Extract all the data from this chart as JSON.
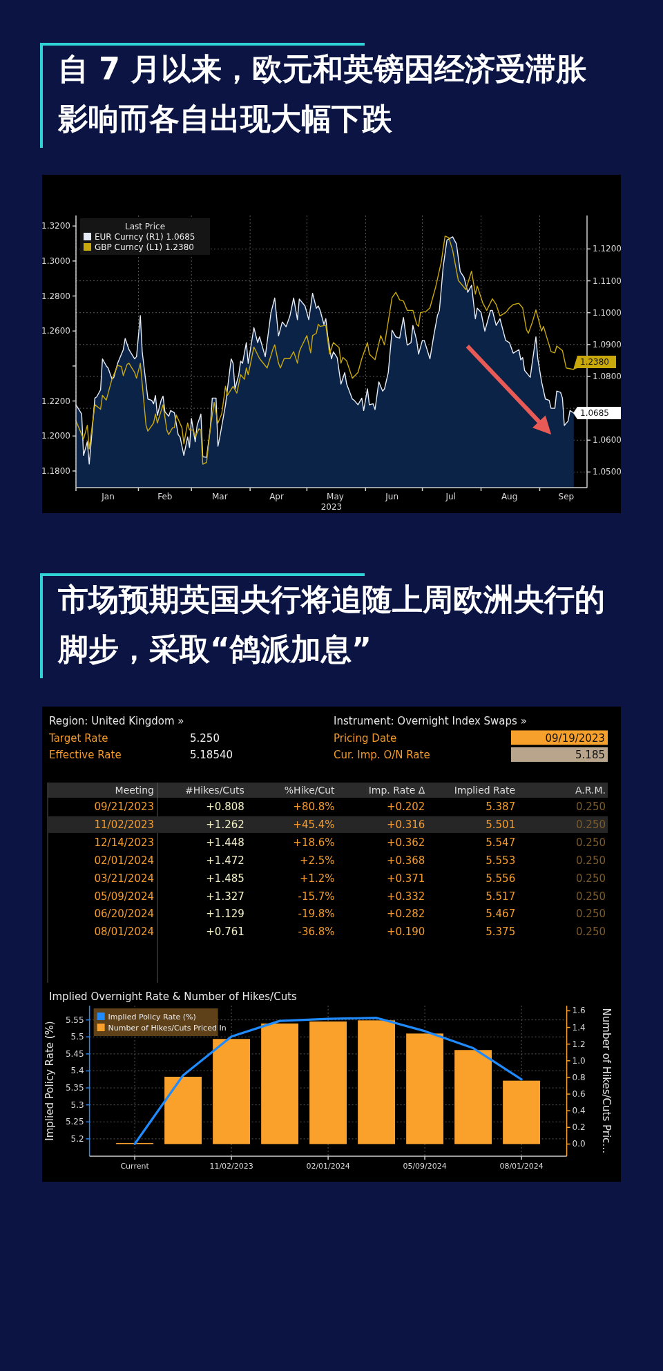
{
  "chart_data": [
    {
      "type": "line",
      "title": "自 7 月以来，欧元和英镑因经济受滞胀影响而各自出现大幅下跌",
      "legend_title": "Last Price",
      "xlabel": "2023",
      "xlim": [
        "2022-12-30",
        "2023-09-26"
      ],
      "ylim": [
        1.1705,
        1.326
      ],
      "y2lim": [
        1.0451,
        1.1305
      ],
      "xticks": [
        {
          "value": "2022-12-30",
          "label": null
        },
        {
          "value": "2023-01-16",
          "label": "Jan"
        },
        {
          "value": "2023-02-01",
          "label": null
        },
        {
          "value": "2023-02-15",
          "label": "Feb"
        },
        {
          "value": "2023-03-01",
          "label": null
        },
        {
          "value": "2023-03-16",
          "label": "Mar"
        },
        {
          "value": "2023-04-01",
          "label": null
        },
        {
          "value": "2023-04-15",
          "label": "Apr"
        },
        {
          "value": "2023-05-01",
          "label": null
        },
        {
          "value": "2023-05-16",
          "label": "May"
        },
        {
          "value": "2023-06-01",
          "label": null
        },
        {
          "value": "2023-06-15",
          "label": "Jun"
        },
        {
          "value": "2023-07-01",
          "label": null
        },
        {
          "value": "2023-07-16",
          "label": "Jul"
        },
        {
          "value": "2023-08-01",
          "label": null
        },
        {
          "value": "2023-08-16",
          "label": "Aug"
        },
        {
          "value": "2023-09-01",
          "label": null
        },
        {
          "value": "2023-09-15",
          "label": "Sep"
        }
      ],
      "yticks": [
        {
          "value": 1.18,
          "label": "1.1800"
        },
        {
          "value": 1.2,
          "label": "1.2000"
        },
        {
          "value": 1.22,
          "label": "1.2200"
        },
        {
          "value": 1.24,
          "label": null
        },
        {
          "value": 1.26,
          "label": "1.2600"
        },
        {
          "value": 1.28,
          "label": "1.2800"
        },
        {
          "value": 1.3,
          "label": "1.3000"
        },
        {
          "value": 1.32,
          "label": "1.3200"
        }
      ],
      "y2ticks": [
        {
          "value": 1.05,
          "label": "1.0500"
        },
        {
          "value": 1.06,
          "label": "1.0600"
        },
        {
          "value": 1.07,
          "label": null
        },
        {
          "value": 1.08,
          "label": "1.0800"
        },
        {
          "value": 1.09,
          "label": "1.0900"
        },
        {
          "value": 1.1,
          "label": "1.1000"
        },
        {
          "value": 1.11,
          "label": "1.1100"
        },
        {
          "value": 1.12,
          "label": "1.1200"
        }
      ],
      "grid": true,
      "legend": "top left",
      "series": [
        {
          "name": "EUR Curncy (R1) 1.0685",
          "type": "area",
          "axis": "y2",
          "color": "#e6ecf5",
          "x": [
            "2022-12-30",
            "2023-01-02",
            "2023-01-03",
            "2023-01-05",
            "2023-01-06",
            "2023-01-09",
            "2023-01-10",
            "2023-01-12",
            "2023-01-13",
            "2023-01-15",
            "2023-01-16",
            "2023-01-18",
            "2023-01-19",
            "2023-01-21",
            "2023-01-24",
            "2023-01-25",
            "2023-01-27",
            "2023-01-30",
            "2023-01-31",
            "2023-02-02",
            "2023-02-03",
            "2023-02-06",
            "2023-02-08",
            "2023-02-09",
            "2023-02-10",
            "2023-02-11",
            "2023-02-13",
            "2023-02-14",
            "2023-02-15",
            "2023-02-17",
            "2023-02-18",
            "2023-02-20",
            "2023-02-22",
            "2023-02-23",
            "2023-02-25",
            "2023-02-27",
            "2023-02-28",
            "2023-03-01",
            "2023-03-03",
            "2023-03-04",
            "2023-03-06",
            "2023-03-07",
            "2023-03-09",
            "2023-03-11",
            "2023-03-12",
            "2023-03-14",
            "2023-03-15",
            "2023-03-16",
            "2023-03-19",
            "2023-03-22",
            "2023-03-23",
            "2023-03-24",
            "2023-03-26",
            "2023-03-27",
            "2023-03-28",
            "2023-03-30",
            "2023-03-31",
            "2023-04-03",
            "2023-04-05",
            "2023-04-06",
            "2023-04-09",
            "2023-04-12",
            "2023-04-14",
            "2023-04-16",
            "2023-04-18",
            "2023-04-20",
            "2023-04-22",
            "2023-04-24",
            "2023-04-26",
            "2023-04-27",
            "2023-04-30",
            "2023-05-02",
            "2023-05-04",
            "2023-05-06",
            "2023-05-07",
            "2023-05-08",
            "2023-05-10",
            "2023-05-11",
            "2023-05-12",
            "2023-05-14",
            "2023-05-15",
            "2023-05-17",
            "2023-05-19",
            "2023-05-21",
            "2023-05-22",
            "2023-05-25",
            "2023-05-26",
            "2023-05-28",
            "2023-05-30",
            "2023-05-31",
            "2023-06-02",
            "2023-06-03",
            "2023-06-05",
            "2023-06-06",
            "2023-06-08",
            "2023-06-10",
            "2023-06-11",
            "2023-06-13",
            "2023-06-15",
            "2023-06-17",
            "2023-06-19",
            "2023-06-21",
            "2023-06-23",
            "2023-06-25",
            "2023-06-26",
            "2023-06-28",
            "2023-06-29",
            "2023-07-01",
            "2023-07-02",
            "2023-07-05",
            "2023-07-07",
            "2023-07-09",
            "2023-07-10",
            "2023-07-12",
            "2023-07-14",
            "2023-07-17",
            "2023-07-19",
            "2023-07-21",
            "2023-07-23",
            "2023-07-25",
            "2023-07-27",
            "2023-07-29",
            "2023-07-30",
            "2023-08-01",
            "2023-08-03",
            "2023-08-06",
            "2023-08-07",
            "2023-08-09",
            "2023-08-11",
            "2023-08-14",
            "2023-08-16",
            "2023-08-18",
            "2023-08-21",
            "2023-08-22",
            "2023-08-23",
            "2023-08-24",
            "2023-08-27",
            "2023-08-28",
            "2023-08-30",
            "2023-08-31",
            "2023-09-02",
            "2023-09-04",
            "2023-09-06",
            "2023-09-07",
            "2023-09-09",
            "2023-09-10",
            "2023-09-12",
            "2023-09-13",
            "2023-09-14",
            "2023-09-16",
            "2023-09-17",
            "2023-09-19"
          ],
          "values": [
            1.0711,
            1.0682,
            1.0552,
            1.0595,
            1.0525,
            1.0732,
            1.0736,
            1.0758,
            1.0855,
            1.0833,
            1.0826,
            1.0792,
            1.0797,
            1.0841,
            1.0884,
            1.0919,
            1.0884,
            1.0855,
            1.0862,
            1.0991,
            1.0877,
            1.0729,
            1.0725,
            1.0714,
            1.074,
            1.0678,
            1.0725,
            1.0738,
            1.0689,
            1.0675,
            1.0693,
            1.0686,
            1.0617,
            1.061,
            1.0552,
            1.061,
            1.0577,
            1.0668,
            1.0595,
            1.0646,
            1.0682,
            1.0548,
            1.0546,
            1.0639,
            1.0732,
            1.0732,
            1.0581,
            1.061,
            1.0711,
            1.0855,
            1.0841,
            1.0761,
            1.0805,
            1.0848,
            1.0841,
            1.0906,
            1.0841,
            1.0953,
            1.0906,
            1.0924,
            1.0862,
            1.0999,
            1.1046,
            1.0927,
            1.0971,
            1.0956,
            1.0989,
            1.1046,
            1.0978,
            1.1043,
            1.1021,
            1.0978,
            1.1061,
            1.1014,
            1.1021,
            1.1007,
            1.0963,
            1.0981,
            1.0927,
            1.0855,
            1.0877,
            1.0859,
            1.0776,
            1.0812,
            1.0776,
            1.0729,
            1.0725,
            1.0711,
            1.0732,
            1.0693,
            1.0761,
            1.0711,
            1.0714,
            1.0696,
            1.0783,
            1.0754,
            1.0761,
            1.0812,
            1.0945,
            1.0924,
            1.092,
            1.0985,
            1.0898,
            1.0906,
            1.096,
            1.0913,
            1.087,
            1.0913,
            1.0913,
            1.0855,
            1.0927,
            1.0992,
            1.1007,
            1.1144,
            1.1228,
            1.1238,
            1.1216,
            1.1129,
            1.1111,
            1.1064,
            1.1086,
            1.0981,
            1.1014,
            1.1001,
            1.0942,
            1.1007,
            1.1007,
            1.096,
            1.0981,
            1.0913,
            1.0906,
            1.0873,
            1.0884,
            1.0852,
            1.0859,
            1.0819,
            1.0797,
            1.0841,
            1.0924,
            1.0855,
            1.0783,
            1.0729,
            1.0725,
            1.07,
            1.07,
            1.0754,
            1.075,
            1.0732,
            1.0646,
            1.066,
            1.0693,
            1.0685
          ],
          "value_labels": [
            null,
            null,
            null,
            null,
            null,
            null,
            null,
            null,
            null,
            null,
            null,
            null,
            null,
            null,
            null,
            null,
            null,
            null,
            null,
            null,
            null,
            null,
            null,
            null,
            null,
            null,
            null,
            null,
            null,
            null,
            null,
            null,
            null,
            null,
            null,
            null,
            null,
            null,
            null,
            null,
            null,
            null,
            null,
            null,
            null,
            null,
            null,
            null,
            null,
            null,
            null,
            null,
            null,
            null,
            null,
            null,
            null,
            null,
            null,
            null,
            null,
            null,
            null,
            null,
            null,
            null,
            null,
            null,
            null,
            null,
            null,
            null,
            null,
            null,
            null,
            null,
            null,
            null,
            null,
            null,
            null,
            null,
            null,
            null,
            null,
            null,
            null,
            null,
            null,
            null,
            null,
            null,
            null,
            null,
            null,
            null,
            null,
            null,
            null,
            null,
            null,
            null,
            null,
            null,
            null,
            null,
            null,
            null,
            null,
            null,
            null,
            null,
            null,
            null,
            null,
            null,
            null,
            null,
            null,
            null,
            null,
            null,
            null,
            null,
            null,
            null,
            null,
            null,
            null,
            null,
            null,
            null,
            null,
            null,
            null,
            null,
            null,
            null,
            null,
            null,
            null,
            null,
            null,
            null,
            null,
            null,
            null,
            null,
            null,
            null,
            null,
            "1.0685"
          ]
        },
        {
          "name": "GBP Curncy (L1) 1.2380",
          "type": "line",
          "color": "#c9a80c",
          "x": [
            "2022-12-30",
            "2023-01-03",
            "2023-01-05",
            "2023-01-06",
            "2023-01-09",
            "2023-01-12",
            "2023-01-13",
            "2023-01-15",
            "2023-01-18",
            "2023-01-21",
            "2023-01-23",
            "2023-01-24",
            "2023-01-26",
            "2023-01-27",
            "2023-01-30",
            "2023-01-31",
            "2023-02-02",
            "2023-02-05",
            "2023-02-06",
            "2023-02-09",
            "2023-02-10",
            "2023-02-11",
            "2023-02-14",
            "2023-02-16",
            "2023-02-17",
            "2023-02-19",
            "2023-02-20",
            "2023-02-21",
            "2023-02-24",
            "2023-02-25",
            "2023-02-27",
            "2023-02-28",
            "2023-03-02",
            "2023-03-03",
            "2023-03-05",
            "2023-03-06",
            "2023-03-07",
            "2023-03-09",
            "2023-03-11",
            "2023-03-13",
            "2023-03-15",
            "2023-03-17",
            "2023-03-19",
            "2023-03-20",
            "2023-03-23",
            "2023-03-25",
            "2023-03-27",
            "2023-03-29",
            "2023-03-30",
            "2023-03-31",
            "2023-04-03",
            "2023-04-06",
            "2023-04-10",
            "2023-04-13",
            "2023-04-14",
            "2023-04-16",
            "2023-04-17",
            "2023-04-19",
            "2023-04-22",
            "2023-04-24",
            "2023-04-26",
            "2023-04-27",
            "2023-04-28",
            "2023-05-01",
            "2023-05-03",
            "2023-05-04",
            "2023-05-06",
            "2023-05-07",
            "2023-05-08",
            "2023-05-11",
            "2023-05-13",
            "2023-05-15",
            "2023-05-18",
            "2023-05-19",
            "2023-05-20",
            "2023-05-22",
            "2023-05-25",
            "2023-05-28",
            "2023-05-30",
            "2023-06-02",
            "2023-06-03",
            "2023-06-06",
            "2023-06-09",
            "2023-06-11",
            "2023-06-15",
            "2023-06-17",
            "2023-06-19",
            "2023-06-21",
            "2023-06-23",
            "2023-06-26",
            "2023-06-28",
            "2023-06-29",
            "2023-06-30",
            "2023-07-03",
            "2023-07-05",
            "2023-07-08",
            "2023-07-11",
            "2023-07-13",
            "2023-07-15",
            "2023-07-17",
            "2023-07-20",
            "2023-07-24",
            "2023-07-27",
            "2023-07-29",
            "2023-07-30",
            "2023-08-02",
            "2023-08-04",
            "2023-08-07",
            "2023-08-09",
            "2023-08-11",
            "2023-08-14",
            "2023-08-16",
            "2023-08-18",
            "2023-08-21",
            "2023-08-23",
            "2023-08-25",
            "2023-08-26",
            "2023-08-28",
            "2023-08-30",
            "2023-09-02",
            "2023-09-03",
            "2023-09-07",
            "2023-09-09",
            "2023-09-10",
            "2023-09-13",
            "2023-09-15",
            "2023-09-19"
          ],
          "values": [
            1.2087,
            1.1982,
            1.2061,
            1.1926,
            1.2179,
            1.2153,
            1.2232,
            1.2205,
            1.2324,
            1.2403,
            1.2397,
            1.2345,
            1.2409,
            1.2416,
            1.2363,
            1.233,
            1.2416,
            1.2061,
            1.2028,
            1.2074,
            1.2126,
            1.2074,
            1.2179,
            1.2034,
            1.2008,
            1.2047,
            1.2047,
            1.212,
            1.2047,
            1.1955,
            1.2074,
            1.2034,
            1.2034,
            1.1995,
            1.2041,
            1.2034,
            1.1839,
            1.1849,
            1.2047,
            1.2192,
            1.2074,
            1.2126,
            1.2284,
            1.2232,
            1.2284,
            1.2245,
            1.235,
            1.2324,
            1.2389,
            1.235,
            1.2508,
            1.2442,
            1.2389,
            1.2495,
            1.2521,
            1.2416,
            1.2389,
            1.2442,
            1.2442,
            1.2482,
            1.2416,
            1.2482,
            1.2508,
            1.2574,
            1.2475,
            1.2574,
            1.2587,
            1.2639,
            1.2626,
            1.2633,
            1.2468,
            1.2534,
            1.2505,
            1.2416,
            1.2449,
            1.2429,
            1.233,
            1.2363,
            1.2442,
            1.2534,
            1.2468,
            1.2436,
            1.2574,
            1.2521,
            1.2791,
            1.2821,
            1.2778,
            1.2771,
            1.2718,
            1.2718,
            1.2639,
            1.2626,
            1.2705,
            1.2712,
            1.2732,
            1.285,
            1.2995,
            1.3142,
            1.3133,
            1.3061,
            1.2889,
            1.2837,
            1.2942,
            1.2811,
            1.2857,
            1.2758,
            1.2718,
            1.2784,
            1.2751,
            1.2686,
            1.2705,
            1.2732,
            1.2751,
            1.2758,
            1.2732,
            1.2607,
            1.2587,
            1.2646,
            1.2721,
            1.26,
            1.2626,
            1.2482,
            1.2475,
            1.2514,
            1.2488,
            1.2389,
            1.238
          ],
          "value_labels": [
            null,
            null,
            null,
            null,
            null,
            null,
            null,
            null,
            null,
            null,
            null,
            null,
            null,
            null,
            null,
            null,
            null,
            null,
            null,
            null,
            null,
            null,
            null,
            null,
            null,
            null,
            null,
            null,
            null,
            null,
            null,
            null,
            null,
            null,
            null,
            null,
            null,
            null,
            null,
            null,
            null,
            null,
            null,
            null,
            null,
            null,
            null,
            null,
            null,
            null,
            null,
            null,
            null,
            null,
            null,
            null,
            null,
            null,
            null,
            null,
            null,
            null,
            null,
            null,
            null,
            null,
            null,
            null,
            null,
            null,
            null,
            null,
            null,
            null,
            null,
            null,
            null,
            null,
            null,
            null,
            null,
            null,
            null,
            null,
            null,
            null,
            null,
            null,
            null,
            null,
            null,
            null,
            null,
            null,
            null,
            null,
            null,
            null,
            null,
            null,
            null,
            null,
            null,
            null,
            null,
            null,
            null,
            null,
            null,
            null,
            null,
            null,
            null,
            null,
            null,
            null,
            null,
            null,
            null,
            null,
            null,
            null,
            null,
            null,
            null,
            null,
            "1.2380"
          ]
        }
      ]
    },
    {
      "type": "other",
      "title": "市场预期英国央行将追随上周欧洲央行的脚步，采取“鸽派加息”",
      "annotations": [
        "Region: United Kingdom »",
        "Instrument: Overnight Index Swaps »",
        "Target Rate",
        "5.250",
        "Pricing Date",
        "09/19/2023",
        "Effective Rate",
        "5.18540",
        "Cur. Imp. O/N Rate",
        "5.185"
      ],
      "categories": [
        "Meeting",
        "#Hikes/Cuts",
        "%Hike/Cut",
        "Imp. Rate Δ",
        "Implied Rate",
        "A.R.M."
      ],
      "cell_labels": [
        [
          "09/21/2023",
          "+0.808",
          "+80.8%",
          "+0.202",
          "5.387",
          "0.250"
        ],
        [
          "11/02/2023",
          "+1.262",
          "+45.4%",
          "+0.316",
          "5.501",
          "0.250"
        ],
        [
          "12/14/2023",
          "+1.448",
          "+18.6%",
          "+0.362",
          "5.547",
          "0.250"
        ],
        [
          "02/01/2024",
          "+1.472",
          "+2.5%",
          "+0.368",
          "5.553",
          "0.250"
        ],
        [
          "03/21/2024",
          "+1.485",
          "+1.2%",
          "+0.371",
          "5.556",
          "0.250"
        ],
        [
          "05/09/2024",
          "+1.327",
          "-15.7%",
          "+0.332",
          "5.517",
          "0.250"
        ],
        [
          "06/20/2024",
          "+1.129",
          "-19.8%",
          "+0.282",
          "5.467",
          "0.250"
        ],
        [
          "08/01/2024",
          "+0.761",
          "-36.8%",
          "+0.190",
          "5.375",
          "0.250"
        ]
      ]
    },
    {
      "type": "bar",
      "title": "Implied Overnight Rate & Number of Hikes/Cuts",
      "ylabel": "Implied Policy Rate (%)",
      "y2label": "Number of Hikes/Cuts Pric…",
      "categories": [
        "Current",
        null,
        "11/02/2023",
        null,
        "02/01/2024",
        null,
        "05/09/2024",
        null,
        "08/01/2024"
      ],
      "ylim": [
        5.149,
        5.592
      ],
      "yticks": [
        5.2,
        5.25,
        5.3,
        5.35,
        5.4,
        5.45,
        5.5,
        5.55
      ],
      "y2lim": [
        -0.146,
        1.662
      ],
      "y2ticks": [
        {
          "value": 0,
          "label": "0.0"
        },
        {
          "value": 0.2,
          "label": "0.2"
        },
        {
          "value": 0.4,
          "label": "0.4"
        },
        {
          "value": 0.6,
          "label": "0.6"
        },
        {
          "value": 0.8,
          "label": "0.8"
        },
        {
          "value": 1,
          "label": "1.0"
        },
        {
          "value": 1.2,
          "label": "1.2"
        },
        {
          "value": 1.4,
          "label": "1.4"
        },
        {
          "value": 1.6,
          "label": "1.6"
        }
      ],
      "grid": true,
      "legend": "top left",
      "series": [
        {
          "name": "Implied Policy Rate (%)",
          "type": "line",
          "color": "#1f8bff",
          "values": [
            5.185,
            5.387,
            5.501,
            5.547,
            5.553,
            5.556,
            5.517,
            5.467,
            5.375
          ]
        },
        {
          "name": "Number of Hikes/Cuts Priced In",
          "type": "bar",
          "axis": "y2",
          "color": "#f9a12b",
          "values": [
            0,
            0.808,
            1.262,
            1.448,
            1.472,
            1.485,
            1.327,
            1.129,
            0.761
          ]
        }
      ]
    }
  ]
}
